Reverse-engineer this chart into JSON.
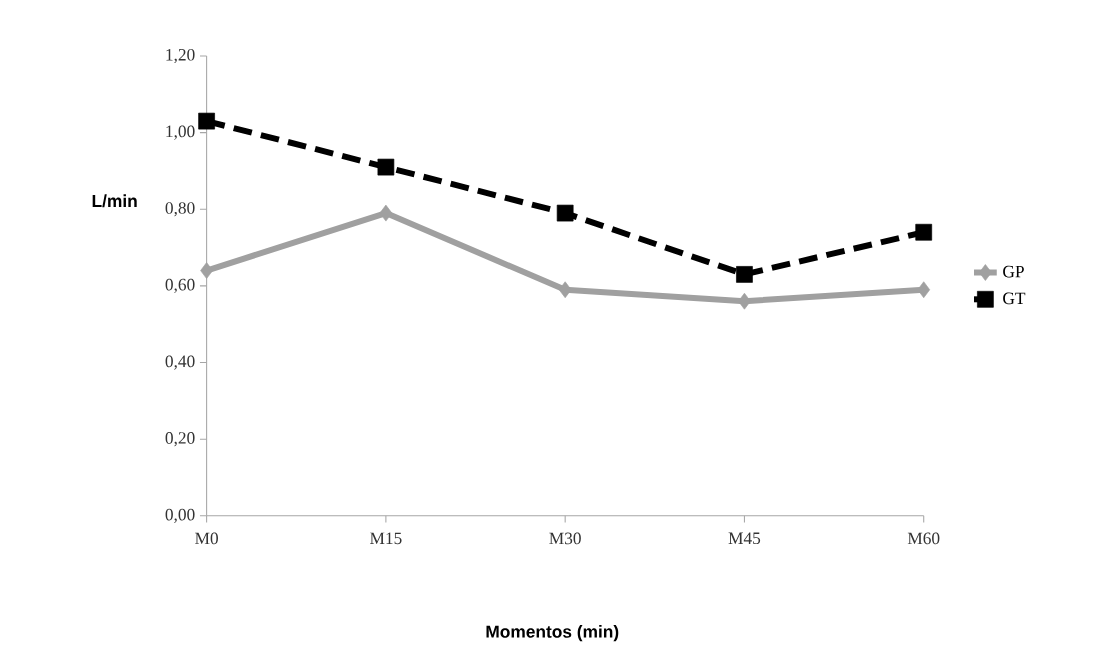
{
  "chart_data": {
    "type": "line",
    "xlabel": "Momentos (min)",
    "ylabel": "L/min",
    "categories": [
      "M0",
      "M15",
      "M30",
      "M45",
      "M60"
    ],
    "series": [
      {
        "name": "GP",
        "color": "#a0a0a0",
        "values": [
          0.64,
          0.79,
          0.59,
          0.56,
          0.59
        ],
        "marker": "diamond",
        "line_style": "solid"
      },
      {
        "name": "GT",
        "color": "#000000",
        "values": [
          1.03,
          0.91,
          0.79,
          0.63,
          0.74
        ],
        "marker": "square",
        "line_style": "dashed"
      }
    ],
    "ylim": [
      0,
      1.2
    ],
    "yticks": [
      {
        "value": 0,
        "label": "0,00"
      },
      {
        "value": 0.2,
        "label": "0,20"
      },
      {
        "value": 0.4,
        "label": "0,40"
      },
      {
        "value": 0.6,
        "label": "0,60"
      },
      {
        "value": 0.8,
        "label": "0,80"
      },
      {
        "value": 1.0,
        "label": "1,00"
      },
      {
        "value": 1.2,
        "label": "1,20"
      }
    ],
    "grid": false,
    "legend": "right"
  }
}
